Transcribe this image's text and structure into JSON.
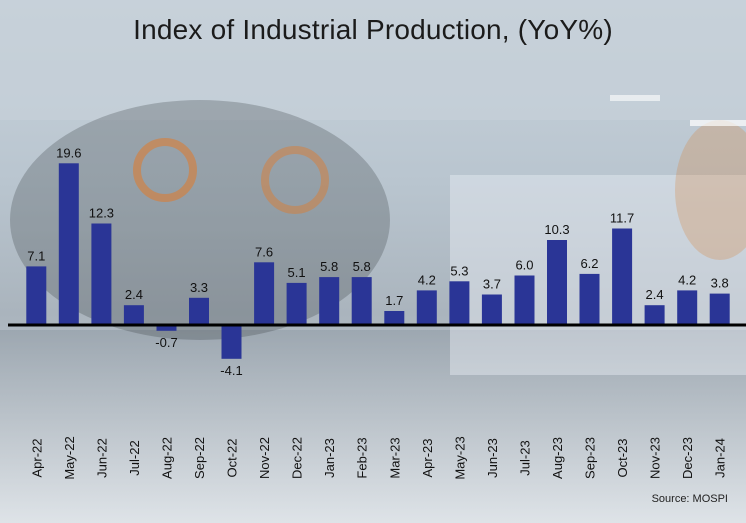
{
  "title": "Index of Industrial Production,  (YoY%)",
  "source": "Source: MOSPI",
  "colors": {
    "bar": "#2a3596",
    "baseline": "#000000",
    "label": "#111111"
  },
  "chart_data": {
    "type": "bar",
    "title": "Index of Industrial Production,  (YoY%)",
    "categories": [
      "Apr-22",
      "May-22",
      "Jun-22",
      "Jul-22",
      "Aug-22",
      "Sep-22",
      "Oct-22",
      "Nov-22",
      "Dec-22",
      "Jan-23",
      "Feb-23",
      "Mar-23",
      "Apr-23",
      "May-23",
      "Jun-23",
      "Jul-23",
      "Aug-23",
      "Sep-23",
      "Oct-23",
      "Nov-23",
      "Dec-23",
      "Jan-24"
    ],
    "values": [
      7.1,
      19.6,
      12.3,
      2.4,
      -0.7,
      3.3,
      -4.1,
      7.6,
      5.1,
      5.8,
      5.8,
      1.7,
      4.2,
      5.3,
      3.7,
      6.0,
      10.3,
      6.2,
      11.7,
      2.4,
      4.2,
      3.8
    ],
    "value_labels": [
      "7.1",
      "19.6",
      "12.3",
      "2.4",
      "-0.7",
      "3.3",
      "-4.1",
      "7.6",
      "5.1",
      "5.8",
      "5.8",
      "1.7",
      "4.2",
      "5.3",
      "3.7",
      "6.0",
      "10.3",
      "6.2",
      "11.7",
      "2.4",
      "4.2",
      "3.8"
    ],
    "xlabel": "",
    "ylabel": "",
    "grid": false,
    "legend": "none"
  }
}
